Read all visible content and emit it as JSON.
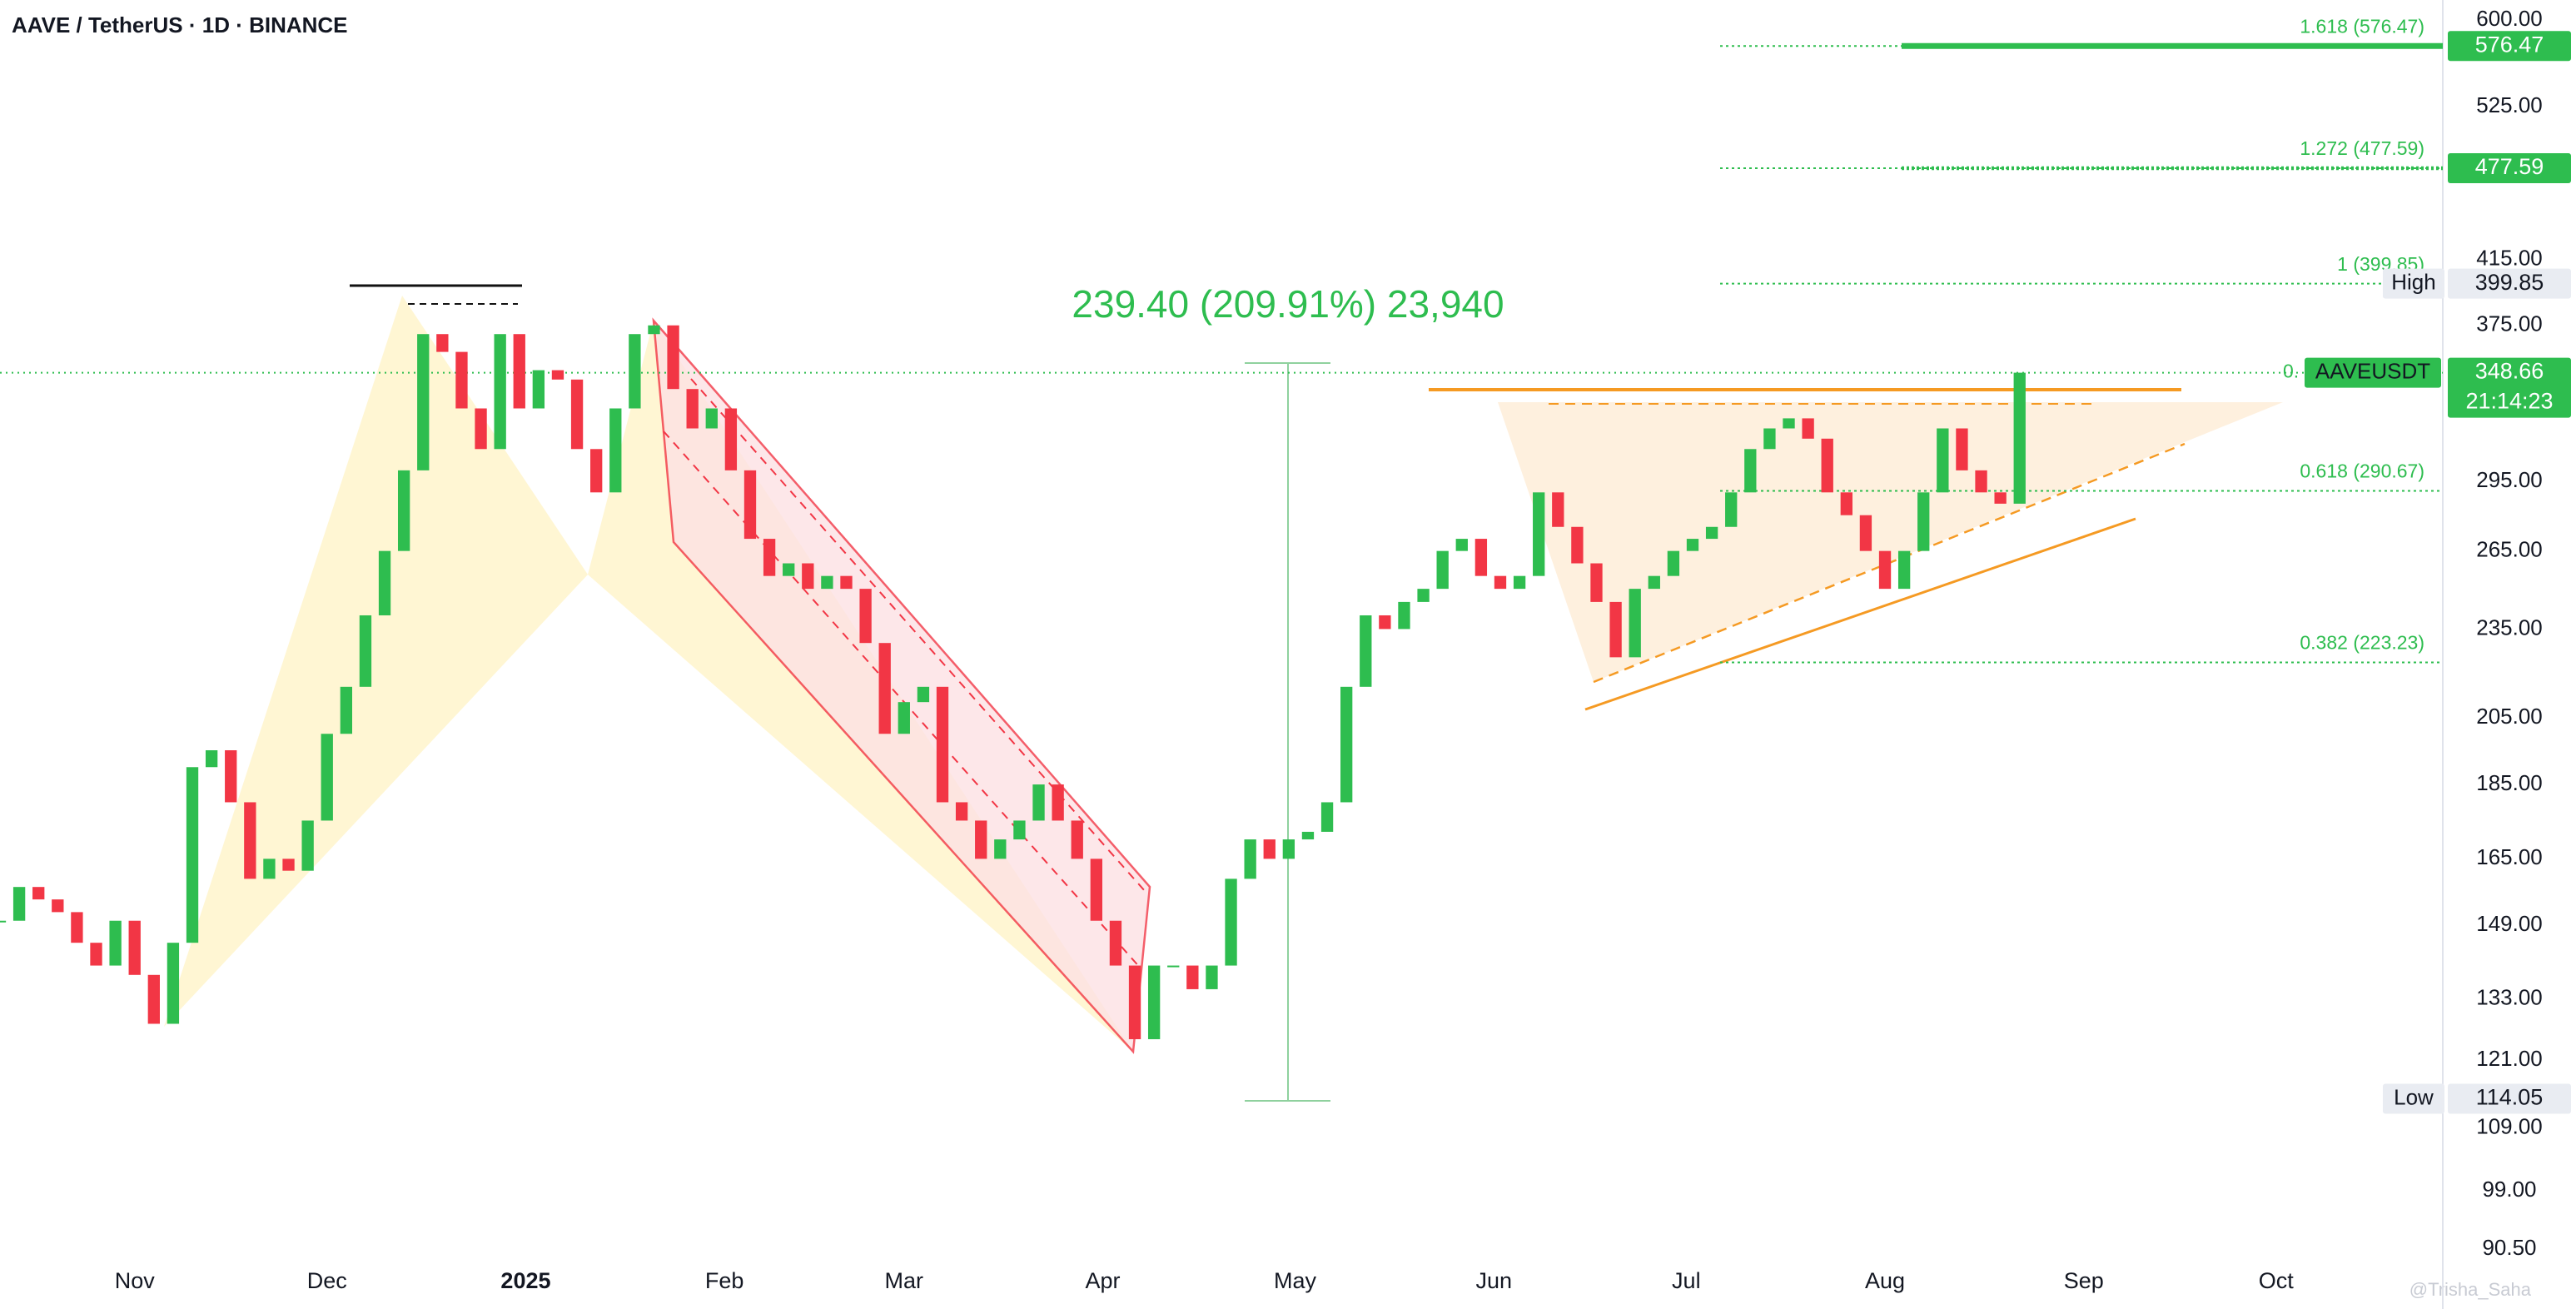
{
  "header": {
    "symbol": "AAVE / TetherUS · 1D · BINANCE"
  },
  "chart_data": {
    "type": "candlestick",
    "log_scale": true,
    "up_color": "#2ebd4f",
    "down_color": "#f23645",
    "ylim": [
      90.5,
      600
    ],
    "yticks": [
      {
        "value": 90.5,
        "label": "90.50"
      },
      {
        "value": 99,
        "label": "99.00"
      },
      {
        "value": 109,
        "label": "109.00"
      },
      {
        "value": 121,
        "label": "121.00"
      },
      {
        "value": 133,
        "label": "133.00"
      },
      {
        "value": 149,
        "label": "149.00"
      },
      {
        "value": 165,
        "label": "165.00"
      },
      {
        "value": 185,
        "label": "185.00"
      },
      {
        "value": 205,
        "label": "205.00"
      },
      {
        "value": 235,
        "label": "235.00"
      },
      {
        "value": 265,
        "label": "265.00"
      },
      {
        "value": 295,
        "label": "295.00"
      },
      {
        "value": 375,
        "label": "375.00"
      },
      {
        "value": 415,
        "label": "415.00"
      },
      {
        "value": 525,
        "label": "525.00"
      },
      {
        "value": 600,
        "label": "600.00"
      }
    ],
    "xlim": [
      0,
      381
    ],
    "xticks": [
      {
        "value": 21,
        "label": "Nov"
      },
      {
        "value": 51,
        "label": "Dec"
      },
      {
        "value": 82,
        "label": "2025"
      },
      {
        "value": 113,
        "label": "Feb"
      },
      {
        "value": 141,
        "label": "Mar"
      },
      {
        "value": 172,
        "label": "Apr"
      },
      {
        "value": 202,
        "label": "May"
      },
      {
        "value": 233,
        "label": "Jun"
      },
      {
        "value": 263,
        "label": "Jul"
      },
      {
        "value": 294,
        "label": "Aug"
      },
      {
        "value": 325,
        "label": "Sep"
      },
      {
        "value": 355,
        "label": "Oct"
      }
    ],
    "x": [
      0,
      3,
      6,
      9,
      12,
      15,
      18,
      21,
      24,
      27,
      30,
      33,
      36,
      39,
      42,
      45,
      48,
      51,
      54,
      57,
      60,
      63,
      66,
      69,
      72,
      75,
      78,
      81,
      84,
      87,
      90,
      93,
      96,
      99,
      102,
      105,
      108,
      111,
      114,
      117,
      120,
      123,
      126,
      129,
      132,
      135,
      138,
      141,
      144,
      147,
      150,
      153,
      156,
      159,
      162,
      165,
      168,
      171,
      174,
      177,
      180,
      183,
      186,
      189,
      192,
      195,
      198,
      201,
      204,
      207,
      210,
      213,
      216,
      219,
      222,
      225,
      228,
      231,
      234,
      237,
      240,
      243,
      246,
      249,
      252,
      255,
      258,
      261,
      264,
      267,
      270,
      273,
      276,
      279,
      282,
      285,
      288,
      291,
      294,
      297,
      300,
      303,
      306,
      309,
      312,
      315
    ],
    "values": [
      150,
      158,
      155,
      152,
      145,
      140,
      150,
      138,
      128,
      145,
      190,
      195,
      180,
      160,
      165,
      162,
      175,
      200,
      215,
      240,
      265,
      300,
      370,
      360,
      330,
      310,
      370,
      330,
      350,
      345,
      310,
      290,
      330,
      370,
      375,
      340,
      320,
      330,
      300,
      270,
      255,
      260,
      250,
      255,
      250,
      230,
      200,
      210,
      215,
      180,
      175,
      165,
      170,
      175,
      185,
      175,
      165,
      150,
      140,
      125,
      140,
      140,
      135,
      140,
      160,
      170,
      165,
      170,
      172,
      180,
      215,
      240,
      235,
      245,
      250,
      265,
      270,
      255,
      250,
      255,
      290,
      275,
      260,
      245,
      225,
      250,
      255,
      265,
      270,
      275,
      290,
      310,
      320,
      325,
      315,
      290,
      280,
      265,
      250,
      265,
      290,
      320,
      300,
      290,
      285,
      348.66
    ],
    "measure_label": "239.40 (209.91%) 23,940",
    "fib_levels": [
      {
        "label": "1.618 (576.47)",
        "value": 576.47
      },
      {
        "label": "1.272 (477.59)",
        "value": 477.59
      },
      {
        "label": "1 (399.85)",
        "value": 399.85
      },
      {
        "label": "0.618 (290.67)",
        "value": 290.67
      },
      {
        "label": "0.382 (223.23)",
        "value": 223.23
      }
    ],
    "fib_cut_label": "0.",
    "price_tags": {
      "target_1": 576.47,
      "target_2": 477.59,
      "high": {
        "label": "High",
        "value": 399.85
      },
      "current": {
        "label": "AAVEUSDT",
        "value": 348.66,
        "countdown": "21:14:23"
      },
      "low": {
        "label": "Low",
        "value": 114.05
      }
    }
  },
  "watermark": "@Trisha_Saha"
}
